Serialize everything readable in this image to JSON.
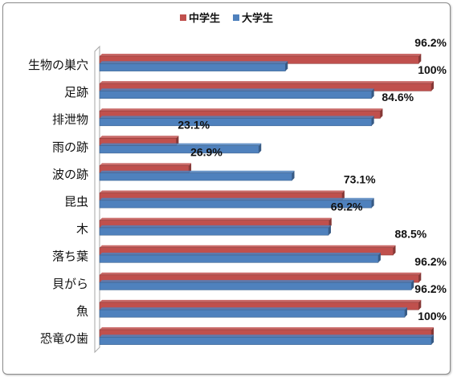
{
  "chart_data": {
    "type": "bar",
    "orientation": "horizontal",
    "categories": [
      "生物の巣穴",
      "足跡",
      "排泄物",
      "雨の跡",
      "波の跡",
      "昆虫",
      "木",
      "落ち葉",
      "貝がら",
      "魚",
      "恐竜の歯"
    ],
    "series": [
      {
        "name": "中学生",
        "color": "#c0504d",
        "values": [
          96.2,
          100,
          84.6,
          23.1,
          26.9,
          73.1,
          69.2,
          88.5,
          96.2,
          96.2,
          100
        ]
      },
      {
        "name": "大学生",
        "color": "#4f81bd",
        "values": [
          56.0,
          82.0,
          82.0,
          48.0,
          58.0,
          82.0,
          69.0,
          84.0,
          94.0,
          92.0,
          100
        ]
      }
    ],
    "data_labels": [
      "96.2%",
      "100%",
      "84.6%",
      "23.1%",
      "26.9%",
      "73.1%",
      "69.2%",
      "88.5%",
      "96.2%",
      "96.2%",
      "100%"
    ],
    "xlim": [
      0,
      100
    ],
    "legend_position": "top-center",
    "grid": false
  }
}
